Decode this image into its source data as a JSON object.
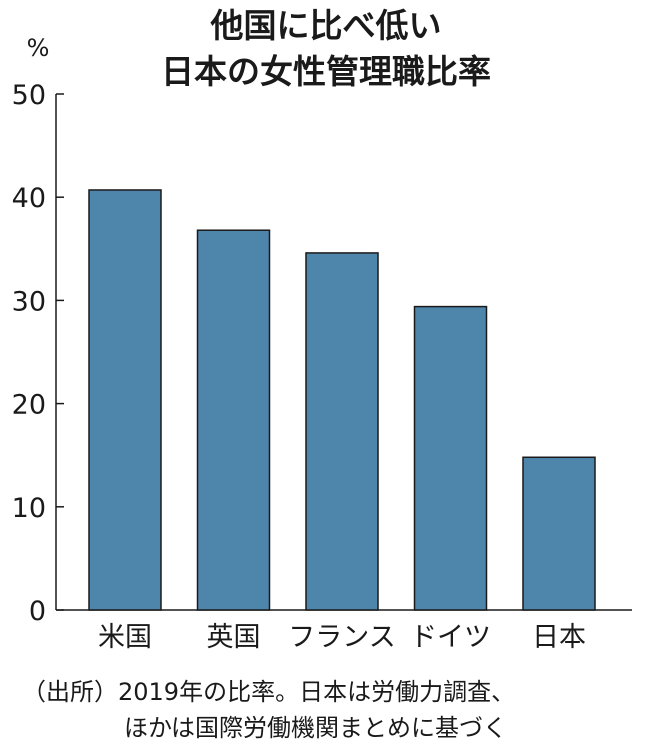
{
  "title_lines": [
    "他国に比べ低い",
    "日本の女性管理職比率"
  ],
  "source_lines": [
    "（出所）2019年の比率。日本は労働力調査、",
    "ほかは国際労働機関まとめに基づく"
  ],
  "bar_color": "#4e85ab",
  "chart_data": {
    "type": "bar",
    "title": "他国に比べ低い 日本の女性管理職比率",
    "unit": "%",
    "categories": [
      "米国",
      "英国",
      "フランス",
      "ドイツ",
      "日本"
    ],
    "values": [
      40.7,
      36.8,
      34.6,
      29.4,
      14.8
    ],
    "yticks": [
      0,
      10,
      20,
      30,
      40,
      50
    ],
    "ylim": [
      0,
      50
    ],
    "grid": false,
    "legend": "none"
  }
}
